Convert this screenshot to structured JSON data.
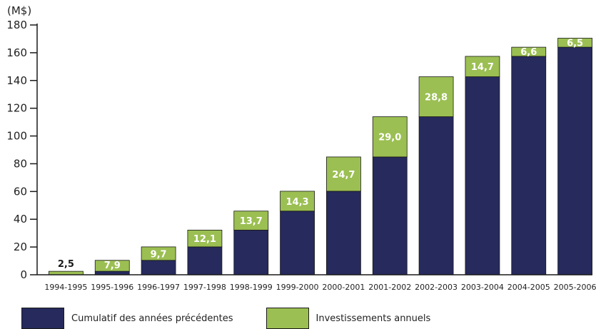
{
  "chart_data": {
    "type": "bar",
    "stacked": true,
    "unit": "(M$)",
    "categories": [
      "1994-1995",
      "1995-1996",
      "1996-1997",
      "1997-1998",
      "1998-1999",
      "1999-2000",
      "2000-2001",
      "2001-2002",
      "2002-2003",
      "2003-2004",
      "2004-2005",
      "2005-2006"
    ],
    "series": [
      {
        "name": "Cumulatif des années précédentes",
        "color": "#262a5c",
        "values": [
          0,
          2.5,
          10.4,
          20.1,
          32.2,
          45.9,
          60.2,
          84.9,
          113.9,
          142.7,
          157.4,
          164.0
        ]
      },
      {
        "name": "Investissements annuels",
        "color": "#9bbf52",
        "values": [
          2.5,
          7.9,
          9.7,
          12.1,
          13.7,
          14.3,
          24.7,
          29.0,
          28.8,
          14.7,
          6.6,
          6.5
        ]
      }
    ],
    "data_labels": [
      "2,5",
      "7,9",
      "9,7",
      "12,1",
      "13,7",
      "14,3",
      "24,7",
      "29,0",
      "28,8",
      "14,7",
      "6,6",
      "6,5"
    ],
    "y_ticks": [
      "0",
      "20",
      "40",
      "60",
      "80",
      "100",
      "120",
      "140",
      "160",
      "180"
    ],
    "ylim": [
      0,
      180
    ],
    "grid": false,
    "legend": "bottom"
  }
}
